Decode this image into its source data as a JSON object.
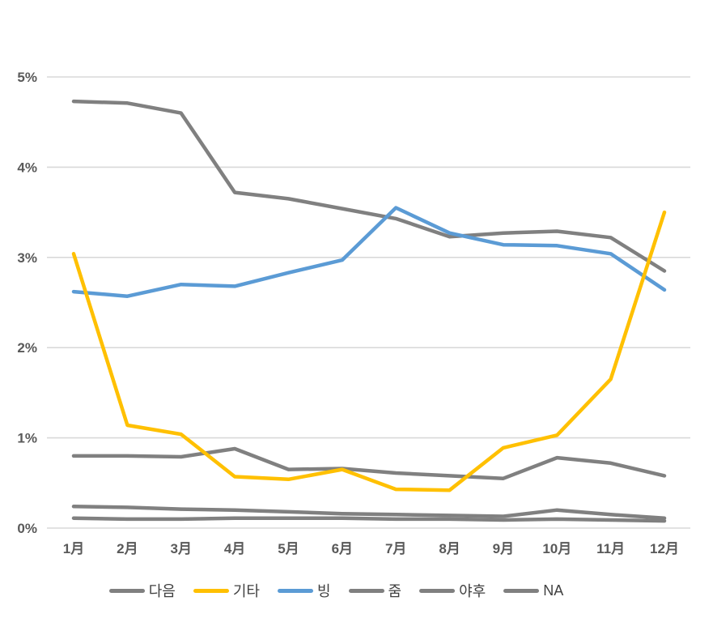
{
  "chart_data": {
    "type": "line",
    "title": "",
    "xlabel": "",
    "ylabel": "",
    "categories": [
      "1月",
      "2月",
      "3月",
      "4月",
      "5月",
      "6月",
      "7月",
      "8月",
      "9月",
      "10月",
      "11月",
      "12月"
    ],
    "series": [
      {
        "key": "daum",
        "name": "다음",
        "color": "#808080",
        "values": [
          4.73,
          4.71,
          4.6,
          3.72,
          3.65,
          3.54,
          3.43,
          3.23,
          3.27,
          3.29,
          3.22,
          2.85
        ]
      },
      {
        "key": "other",
        "name": "기타",
        "color": "#FFC000",
        "values": [
          3.04,
          1.14,
          1.04,
          0.57,
          0.54,
          0.65,
          0.43,
          0.42,
          0.89,
          1.03,
          1.65,
          3.5
        ]
      },
      {
        "key": "bing",
        "name": "빙",
        "color": "#5B9BD5",
        "values": [
          2.62,
          2.57,
          2.7,
          2.68,
          2.83,
          2.97,
          3.55,
          3.27,
          3.14,
          3.13,
          3.04,
          2.64
        ]
      },
      {
        "key": "zum",
        "name": "줌",
        "color": "#808080",
        "values": [
          0.8,
          0.8,
          0.79,
          0.88,
          0.65,
          0.66,
          0.61,
          0.58,
          0.55,
          0.78,
          0.72,
          0.58
        ]
      },
      {
        "key": "yahoo",
        "name": "야후",
        "color": "#808080",
        "values": [
          0.24,
          0.23,
          0.21,
          0.2,
          0.18,
          0.16,
          0.15,
          0.14,
          0.13,
          0.2,
          0.15,
          0.11
        ]
      },
      {
        "key": "na",
        "name": "NA",
        "color": "#808080",
        "values": [
          0.11,
          0.1,
          0.1,
          0.11,
          0.11,
          0.11,
          0.1,
          0.1,
          0.09,
          0.1,
          0.09,
          0.08
        ]
      }
    ],
    "draw_order": [
      "yahoo",
      "na",
      "zum",
      "daum",
      "bing",
      "other"
    ],
    "y_tick_labels": [
      "0%",
      "1%",
      "2%",
      "3%",
      "4%",
      "5%"
    ],
    "ylim": [
      0,
      5
    ],
    "grid": true,
    "legend_position": "bottom"
  },
  "colors": {
    "background": "#FFFFFF",
    "gridline": "#D9D9D9",
    "axis_text": "#595959",
    "legend_text": "#404040"
  }
}
